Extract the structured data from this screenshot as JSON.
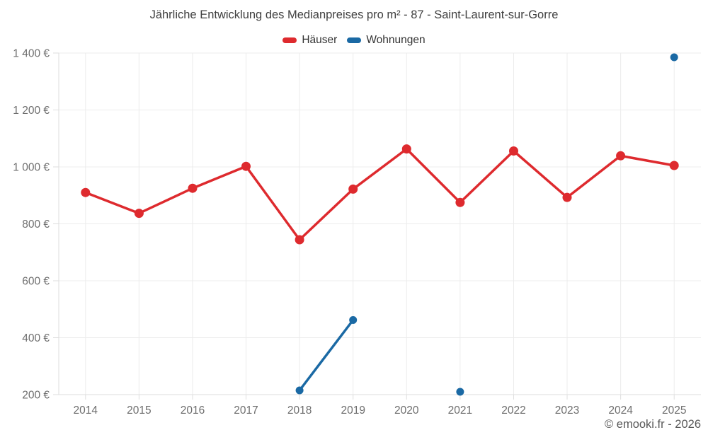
{
  "page": {
    "footer": "© emooki.fr - 2026"
  },
  "chart_data": {
    "type": "line",
    "title": "Jährliche Entwicklung des Medianpreises pro m² - 87 - Saint-Laurent-sur-Gorre",
    "categories": [
      "2014",
      "2015",
      "2016",
      "2017",
      "2018",
      "2019",
      "2020",
      "2021",
      "2022",
      "2023",
      "2024",
      "2025"
    ],
    "series": [
      {
        "name": "Häuser",
        "color": "#de2a2e",
        "point_radius": 6.5,
        "values": [
          910,
          837,
          925,
          1002,
          744,
          922,
          1063,
          875,
          1056,
          893,
          1039,
          1005
        ]
      },
      {
        "name": "Wohnungen",
        "color": "#1a69a4",
        "point_radius": 5.5,
        "values": [
          null,
          null,
          null,
          null,
          215,
          462,
          null,
          210,
          null,
          null,
          null,
          1385
        ]
      }
    ],
    "xlabel": "",
    "ylabel": "",
    "ylim": [
      200,
      1400
    ],
    "ytick_step": 200,
    "ytick_labels": [
      "200 €",
      "400 €",
      "600 €",
      "800 €",
      "1 000 €",
      "1 200 €",
      "1 400 €"
    ],
    "legend_position": "top",
    "grid": true,
    "grid_color": "#ececec",
    "axis_color": "#dedede",
    "tick_label_color": "#6e6e6e",
    "line_width": 3.5
  }
}
